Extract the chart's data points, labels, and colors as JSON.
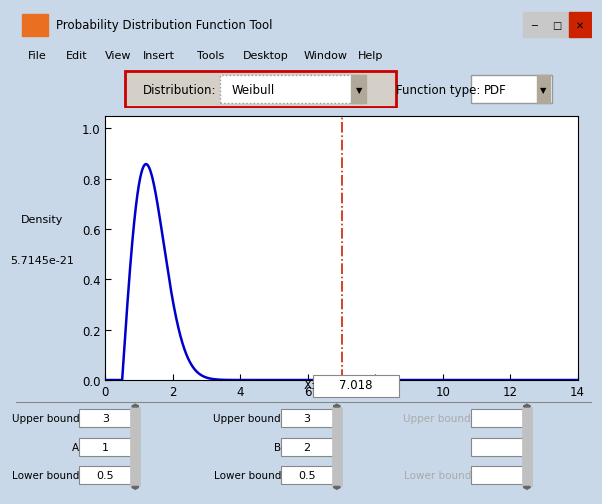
{
  "window_title": "Probability Distribution Function Tool",
  "distribution_label": "Distribution:",
  "distribution_value": "Weibull",
  "function_type_label": "Function type:",
  "function_type_value": "PDF",
  "ylabel_line1": "Density",
  "ylabel_line2": "5.7145e-21",
  "xlabel_text": "X:",
  "xlabel_value": "7.018",
  "xlim": [
    0,
    14
  ],
  "ylim": [
    0,
    1.05
  ],
  "yticks": [
    0,
    0.2,
    0.4,
    0.6,
    0.8,
    1
  ],
  "xticks": [
    0,
    2,
    4,
    6,
    8,
    10,
    12,
    14
  ],
  "weibull_shape": 2,
  "weibull_scale": 1,
  "lower_bound": 0.5,
  "vline_x": 7.018,
  "curve_color": "#0000CC",
  "vline_color": "#CC2200",
  "window_bg": "#C8D8E8",
  "toolbar_bg": "#D4D0C8",
  "plot_bg": "#FFFFFF",
  "plot_area_bg": "#D8E4F0",
  "curve_linewidth": 1.8,
  "menu_items": [
    "File",
    "Edit",
    "View",
    "Insert",
    "Tools",
    "Desktop",
    "Window",
    "Help"
  ],
  "bottom_left_labels": [
    "Upper bound",
    "A",
    "Lower bound"
  ],
  "bottom_left_values": [
    "3",
    "1",
    "0.5"
  ],
  "bottom_mid_labels": [
    "Upper bound",
    "B",
    "Lower bound"
  ],
  "bottom_mid_values": [
    "3",
    "2",
    "0.5"
  ],
  "bottom_right_labels": [
    "Upper bound",
    "",
    "Lower bound"
  ],
  "bottom_right_values": [
    "",
    "",
    ""
  ]
}
